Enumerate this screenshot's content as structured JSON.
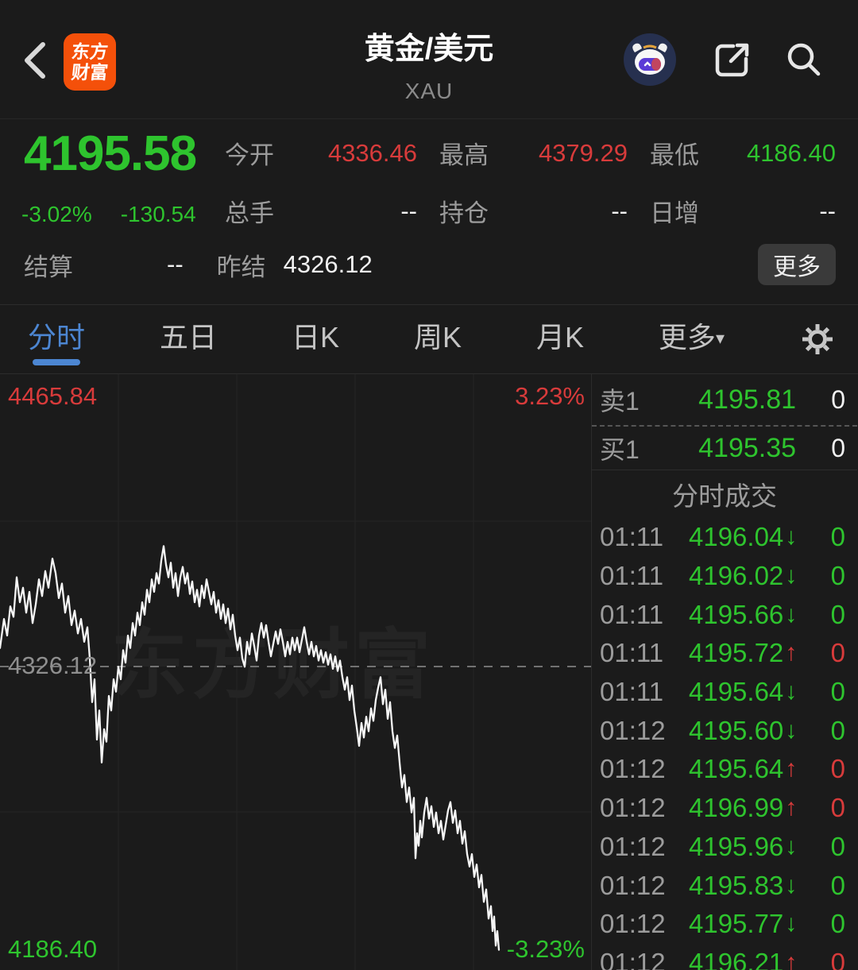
{
  "colors": {
    "up_red": "#d83b3b",
    "down_green": "#2ec42e",
    "accent_blue": "#4c86d2",
    "background": "#1b1b1b",
    "text_gray": "#9c9c9c"
  },
  "header": {
    "title": "黄金/美元",
    "subtitle": "XAU",
    "logo_line1": "东方",
    "logo_line2": "财富",
    "icons": {
      "back": "back-chevron",
      "ai": "ai-assistant-robot",
      "share": "share-square-arrow",
      "search": "magnifier",
      "gear": "settings-gear"
    }
  },
  "quote": {
    "price": "4195.58",
    "change_pct": "-3.02%",
    "change_val": "-130.54",
    "stats": [
      {
        "label": "今开",
        "value": "4336.46",
        "color": "red"
      },
      {
        "label": "最高",
        "value": "4379.29",
        "color": "red"
      },
      {
        "label": "最低",
        "value": "4186.40",
        "color": "green"
      },
      {
        "label": "总手",
        "value": "--",
        "color": "white"
      },
      {
        "label": "持仓",
        "value": "--",
        "color": "white"
      },
      {
        "label": "日增",
        "value": "--",
        "color": "white"
      }
    ],
    "settle_label": "结算",
    "settle_value": "--",
    "prev_settle_label": "昨结",
    "prev_settle_value": "4326.12",
    "more_button": "更多"
  },
  "tabs": {
    "items": [
      "分时",
      "五日",
      "日K",
      "周K",
      "月K"
    ],
    "more": "更多",
    "more_arrow": "▾",
    "active_index": 0
  },
  "chart_data": {
    "type": "line",
    "title": "分时 intraday line, 黄金/美元 (XAU)",
    "ylim": [
      4186.4,
      4465.84
    ],
    "prev_close": 4326.12,
    "pct_range": [
      "3.23%",
      "-3.23%"
    ],
    "x_axis": "session time (unlabeled), x in chart pixels 0-745",
    "grid": "faint quarter gridlines, dashed prev-close midline",
    "watermark": "东方财富",
    "annotations": {
      "top_left": "4465.84",
      "top_right": "3.23%",
      "mid_left": "4326.12",
      "bottom_left": "4186.40",
      "bottom_right": "-3.23%"
    },
    "series": [
      {
        "name": "price",
        "points": [
          [
            0,
            4335
          ],
          [
            5,
            4349
          ],
          [
            9,
            4341
          ],
          [
            13,
            4355
          ],
          [
            17,
            4350
          ],
          [
            21,
            4369
          ],
          [
            25,
            4357
          ],
          [
            29,
            4364
          ],
          [
            33,
            4352
          ],
          [
            37,
            4362
          ],
          [
            41,
            4347
          ],
          [
            45,
            4356
          ],
          [
            49,
            4368
          ],
          [
            53,
            4360
          ],
          [
            57,
            4372
          ],
          [
            61,
            4364
          ],
          [
            66,
            4378
          ],
          [
            70,
            4371
          ],
          [
            74,
            4359
          ],
          [
            78,
            4366
          ],
          [
            82,
            4352
          ],
          [
            86,
            4360
          ],
          [
            90,
            4346
          ],
          [
            94,
            4353
          ],
          [
            98,
            4342
          ],
          [
            102,
            4349
          ],
          [
            106,
            4338
          ],
          [
            110,
            4345
          ],
          [
            113,
            4330
          ],
          [
            116,
            4309
          ],
          [
            119,
            4320
          ],
          [
            122,
            4291
          ],
          [
            125,
            4305
          ],
          [
            128,
            4280
          ],
          [
            131,
            4296
          ],
          [
            134,
            4290
          ],
          [
            137,
            4312
          ],
          [
            140,
            4305
          ],
          [
            143,
            4320
          ],
          [
            146,
            4314
          ],
          [
            149,
            4326
          ],
          [
            152,
            4320
          ],
          [
            155,
            4334
          ],
          [
            158,
            4328
          ],
          [
            161,
            4341
          ],
          [
            164,
            4335
          ],
          [
            167,
            4347
          ],
          [
            170,
            4341
          ],
          [
            173,
            4352
          ],
          [
            176,
            4346
          ],
          [
            179,
            4357
          ],
          [
            182,
            4351
          ],
          [
            185,
            4363
          ],
          [
            188,
            4357
          ],
          [
            191,
            4368
          ],
          [
            194,
            4362
          ],
          [
            197,
            4371
          ],
          [
            200,
            4366
          ],
          [
            203,
            4377
          ],
          [
            206,
            4384
          ],
          [
            209,
            4375
          ],
          [
            212,
            4369
          ],
          [
            215,
            4376
          ],
          [
            218,
            4364
          ],
          [
            221,
            4371
          ],
          [
            224,
            4360
          ],
          [
            227,
            4369
          ],
          [
            230,
            4374
          ],
          [
            233,
            4366
          ],
          [
            236,
            4371
          ],
          [
            239,
            4361
          ],
          [
            242,
            4367
          ],
          [
            245,
            4357
          ],
          [
            248,
            4363
          ],
          [
            251,
            4355
          ],
          [
            254,
            4365
          ],
          [
            257,
            4359
          ],
          [
            260,
            4368
          ],
          [
            263,
            4362
          ],
          [
            266,
            4356
          ],
          [
            269,
            4362
          ],
          [
            272,
            4352
          ],
          [
            275,
            4358
          ],
          [
            278,
            4349
          ],
          [
            281,
            4356
          ],
          [
            284,
            4347
          ],
          [
            287,
            4354
          ],
          [
            290,
            4344
          ],
          [
            293,
            4351
          ],
          [
            296,
            4341
          ],
          [
            299,
            4334
          ],
          [
            302,
            4340
          ],
          [
            305,
            4330
          ],
          [
            308,
            4326
          ],
          [
            311,
            4338
          ],
          [
            314,
            4332
          ],
          [
            317,
            4342
          ],
          [
            320,
            4336
          ],
          [
            323,
            4329
          ],
          [
            326,
            4341
          ],
          [
            329,
            4347
          ],
          [
            332,
            4340
          ],
          [
            335,
            4346
          ],
          [
            338,
            4338
          ],
          [
            341,
            4331
          ],
          [
            344,
            4337
          ],
          [
            347,
            4343
          ],
          [
            350,
            4337
          ],
          [
            353,
            4344
          ],
          [
            356,
            4338
          ],
          [
            359,
            4331
          ],
          [
            362,
            4338
          ],
          [
            365,
            4332
          ],
          [
            368,
            4340
          ],
          [
            371,
            4334
          ],
          [
            374,
            4340
          ],
          [
            377,
            4333
          ],
          [
            380,
            4339
          ],
          [
            383,
            4345
          ],
          [
            386,
            4338
          ],
          [
            389,
            4332
          ],
          [
            392,
            4338
          ],
          [
            395,
            4331
          ],
          [
            398,
            4336
          ],
          [
            401,
            4329
          ],
          [
            404,
            4334
          ],
          [
            407,
            4328
          ],
          [
            410,
            4333
          ],
          [
            413,
            4327
          ],
          [
            416,
            4332
          ],
          [
            419,
            4325
          ],
          [
            422,
            4331
          ],
          [
            425,
            4324
          ],
          [
            428,
            4329
          ],
          [
            431,
            4321
          ],
          [
            434,
            4315
          ],
          [
            437,
            4321
          ],
          [
            440,
            4310
          ],
          [
            443,
            4317
          ],
          [
            446,
            4305
          ],
          [
            449,
            4297
          ],
          [
            452,
            4288
          ],
          [
            455,
            4299
          ],
          [
            458,
            4292
          ],
          [
            461,
            4302
          ],
          [
            464,
            4295
          ],
          [
            467,
            4306
          ],
          [
            470,
            4300
          ],
          [
            473,
            4310
          ],
          [
            476,
            4316
          ],
          [
            479,
            4321
          ],
          [
            482,
            4308
          ],
          [
            485,
            4315
          ],
          [
            488,
            4301
          ],
          [
            491,
            4309
          ],
          [
            494,
            4295
          ],
          [
            497,
            4287
          ],
          [
            500,
            4293
          ],
          [
            503,
            4280
          ],
          [
            506,
            4268
          ],
          [
            509,
            4274
          ],
          [
            512,
            4261
          ],
          [
            515,
            4268
          ],
          [
            518,
            4256
          ],
          [
            521,
            4263
          ],
          [
            523,
            4234
          ],
          [
            525,
            4246
          ],
          [
            527,
            4240
          ],
          [
            529,
            4252
          ],
          [
            531,
            4244
          ],
          [
            534,
            4256
          ],
          [
            537,
            4263
          ],
          [
            540,
            4253
          ],
          [
            543,
            4259
          ],
          [
            546,
            4249
          ],
          [
            549,
            4256
          ],
          [
            552,
            4246
          ],
          [
            555,
            4252
          ],
          [
            558,
            4243
          ],
          [
            561,
            4250
          ],
          [
            564,
            4257
          ],
          [
            567,
            4261
          ],
          [
            570,
            4251
          ],
          [
            573,
            4257
          ],
          [
            576,
            4246
          ],
          [
            579,
            4252
          ],
          [
            582,
            4241
          ],
          [
            585,
            4247
          ],
          [
            588,
            4236
          ],
          [
            591,
            4230
          ],
          [
            594,
            4236
          ],
          [
            597,
            4225
          ],
          [
            600,
            4231
          ],
          [
            603,
            4220
          ],
          [
            606,
            4226
          ],
          [
            609,
            4213
          ],
          [
            612,
            4219
          ],
          [
            615,
            4205
          ],
          [
            618,
            4211
          ],
          [
            620,
            4199
          ],
          [
            622,
            4206
          ],
          [
            624,
            4192
          ],
          [
            626,
            4199
          ],
          [
            628,
            4190
          ]
        ]
      }
    ]
  },
  "order_book": {
    "sell_label": "卖1",
    "sell_price": "4195.81",
    "sell_volume": "0",
    "buy_label": "买1",
    "buy_price": "4195.35",
    "buy_volume": "0"
  },
  "trades": {
    "header": "分时成交",
    "rows": [
      {
        "time": "01:11",
        "price": "4196.04",
        "arrow": "↓",
        "dir": "down",
        "vol": "0"
      },
      {
        "time": "01:11",
        "price": "4196.02",
        "arrow": "↓",
        "dir": "down",
        "vol": "0"
      },
      {
        "time": "01:11",
        "price": "4195.66",
        "arrow": "↓",
        "dir": "down",
        "vol": "0"
      },
      {
        "time": "01:11",
        "price": "4195.72",
        "arrow": "↑",
        "dir": "up",
        "vol": "0"
      },
      {
        "time": "01:11",
        "price": "4195.64",
        "arrow": "↓",
        "dir": "down",
        "vol": "0"
      },
      {
        "time": "01:12",
        "price": "4195.60",
        "arrow": "↓",
        "dir": "down",
        "vol": "0"
      },
      {
        "time": "01:12",
        "price": "4195.64",
        "arrow": "↑",
        "dir": "up",
        "vol": "0"
      },
      {
        "time": "01:12",
        "price": "4196.99",
        "arrow": "↑",
        "dir": "up",
        "vol": "0"
      },
      {
        "time": "01:12",
        "price": "4195.96",
        "arrow": "↓",
        "dir": "down",
        "vol": "0"
      },
      {
        "time": "01:12",
        "price": "4195.83",
        "arrow": "↓",
        "dir": "down",
        "vol": "0"
      },
      {
        "time": "01:12",
        "price": "4195.77",
        "arrow": "↓",
        "dir": "down",
        "vol": "0"
      },
      {
        "time": "01:12",
        "price": "4196.21",
        "arrow": "↑",
        "dir": "up",
        "vol": "0"
      }
    ]
  }
}
